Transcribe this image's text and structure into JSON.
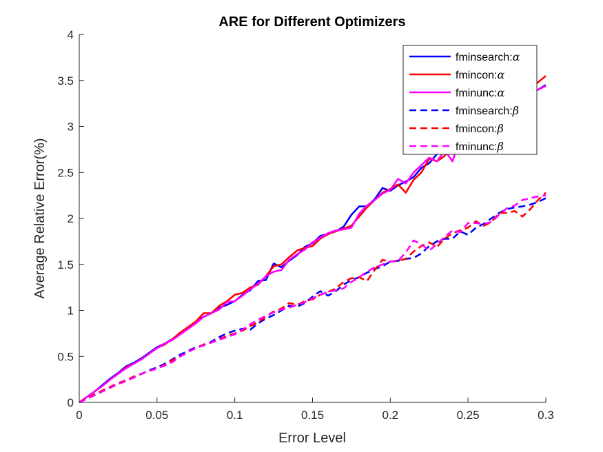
{
  "chart_data": {
    "type": "line",
    "title": "ARE for Different Optimizers",
    "xlabel": "Error Level",
    "ylabel": "Average Relative Error(%)",
    "xlim": [
      0,
      0.3
    ],
    "ylim": [
      0,
      4
    ],
    "xticks": [
      "0",
      "0.05",
      "0.1",
      "0.15",
      "0.2",
      "0.25",
      "0.3"
    ],
    "yticks": [
      "0",
      "0.5",
      "1",
      "1.5",
      "2",
      "2.5",
      "3",
      "3.5",
      "4"
    ],
    "grid": false,
    "legend_position": "top-right",
    "x": [
      0,
      0.005,
      0.01,
      0.015,
      0.02,
      0.025,
      0.03,
      0.035,
      0.04,
      0.045,
      0.05,
      0.055,
      0.06,
      0.065,
      0.07,
      0.075,
      0.08,
      0.085,
      0.09,
      0.095,
      0.1,
      0.105,
      0.11,
      0.115,
      0.12,
      0.125,
      0.13,
      0.135,
      0.14,
      0.145,
      0.15,
      0.155,
      0.16,
      0.165,
      0.17,
      0.175,
      0.18,
      0.185,
      0.19,
      0.195,
      0.2,
      0.205,
      0.21,
      0.215,
      0.22,
      0.225,
      0.23,
      0.235,
      0.24,
      0.245,
      0.25,
      0.255,
      0.26,
      0.265,
      0.27,
      0.275,
      0.28,
      0.285,
      0.29,
      0.295,
      0.3
    ],
    "series": [
      {
        "name": "fminsearch:",
        "greek": "α",
        "color": "#0000ff",
        "dash": "solid",
        "values": [
          0,
          0.06,
          0.12,
          0.19,
          0.26,
          0.32,
          0.39,
          0.43,
          0.48,
          0.54,
          0.6,
          0.64,
          0.69,
          0.75,
          0.8,
          0.88,
          0.93,
          0.97,
          1.03,
          1.06,
          1.1,
          1.17,
          1.22,
          1.32,
          1.33,
          1.51,
          1.47,
          1.54,
          1.6,
          1.69,
          1.73,
          1.81,
          1.83,
          1.86,
          1.91,
          2.04,
          2.13,
          2.13,
          2.21,
          2.33,
          2.3,
          2.36,
          2.4,
          2.45,
          2.55,
          2.6,
          2.7,
          2.82,
          2.9,
          2.95,
          3.03,
          3.1,
          3.16,
          3.2,
          3.24,
          3.27,
          3.3,
          3.32,
          3.35,
          3.4,
          3.45
        ]
      },
      {
        "name": "fmincon:",
        "greek": "α",
        "color": "#ff0000",
        "dash": "solid",
        "values": [
          0,
          0.06,
          0.12,
          0.18,
          0.25,
          0.31,
          0.38,
          0.42,
          0.47,
          0.53,
          0.59,
          0.63,
          0.69,
          0.76,
          0.82,
          0.88,
          0.97,
          0.97,
          1.05,
          1.1,
          1.17,
          1.19,
          1.25,
          1.28,
          1.37,
          1.48,
          1.5,
          1.58,
          1.65,
          1.68,
          1.7,
          1.78,
          1.83,
          1.86,
          1.89,
          1.92,
          2.02,
          2.12,
          2.2,
          2.28,
          2.32,
          2.37,
          2.28,
          2.42,
          2.5,
          2.65,
          2.62,
          2.68,
          2.82,
          2.93,
          3.01,
          3.1,
          3.2,
          3.21,
          3.28,
          3.3,
          3.32,
          3.36,
          3.4,
          3.48,
          3.55
        ]
      },
      {
        "name": "fminunc:",
        "greek": "α",
        "color": "#ff00ff",
        "dash": "solid",
        "values": [
          0,
          0.06,
          0.12,
          0.18,
          0.25,
          0.31,
          0.37,
          0.42,
          0.47,
          0.53,
          0.59,
          0.64,
          0.68,
          0.74,
          0.8,
          0.86,
          0.93,
          0.97,
          1.01,
          1.09,
          1.1,
          1.16,
          1.23,
          1.29,
          1.37,
          1.42,
          1.44,
          1.55,
          1.61,
          1.66,
          1.74,
          1.79,
          1.84,
          1.87,
          1.88,
          1.9,
          2.05,
          2.14,
          2.2,
          2.27,
          2.31,
          2.43,
          2.38,
          2.5,
          2.58,
          2.66,
          2.62,
          2.74,
          2.62,
          2.88,
          2.99,
          3.06,
          3.14,
          3.21,
          3.25,
          3.28,
          3.31,
          3.34,
          3.37,
          3.4,
          3.44
        ]
      },
      {
        "name": "fminsearch:",
        "greek": "β",
        "color": "#0000ff",
        "dash": "dashed",
        "values": [
          0,
          0.04,
          0.08,
          0.12,
          0.16,
          0.2,
          0.24,
          0.27,
          0.31,
          0.35,
          0.38,
          0.42,
          0.47,
          0.52,
          0.56,
          0.6,
          0.62,
          0.66,
          0.71,
          0.75,
          0.78,
          0.8,
          0.79,
          0.86,
          0.91,
          0.95,
          1.0,
          1.05,
          1.04,
          1.08,
          1.15,
          1.21,
          1.16,
          1.21,
          1.28,
          1.33,
          1.36,
          1.41,
          1.45,
          1.48,
          1.53,
          1.54,
          1.56,
          1.57,
          1.62,
          1.7,
          1.75,
          1.78,
          1.78,
          1.86,
          1.82,
          1.9,
          1.94,
          2.0,
          2.06,
          2.1,
          2.12,
          2.13,
          2.15,
          2.18,
          2.22
        ]
      },
      {
        "name": "fmincon:",
        "greek": "β",
        "color": "#ff0000",
        "dash": "dashed",
        "values": [
          0,
          0.05,
          0.09,
          0.13,
          0.17,
          0.21,
          0.24,
          0.28,
          0.31,
          0.34,
          0.37,
          0.41,
          0.46,
          0.5,
          0.55,
          0.59,
          0.63,
          0.65,
          0.69,
          0.72,
          0.75,
          0.78,
          0.83,
          0.87,
          0.93,
          0.99,
          1.02,
          1.08,
          1.06,
          1.1,
          1.12,
          1.17,
          1.2,
          1.24,
          1.31,
          1.35,
          1.36,
          1.32,
          1.44,
          1.55,
          1.53,
          1.54,
          1.56,
          1.64,
          1.7,
          1.74,
          1.69,
          1.78,
          1.84,
          1.87,
          1.9,
          1.97,
          1.92,
          1.96,
          2.06,
          2.06,
          2.08,
          2.02,
          2.1,
          2.2,
          2.28
        ]
      },
      {
        "name": "fminunc:",
        "greek": "β",
        "color": "#ff00ff",
        "dash": "dashed",
        "values": [
          0,
          0.04,
          0.08,
          0.12,
          0.16,
          0.2,
          0.23,
          0.27,
          0.31,
          0.34,
          0.37,
          0.4,
          0.44,
          0.5,
          0.55,
          0.59,
          0.62,
          0.65,
          0.68,
          0.71,
          0.74,
          0.79,
          0.85,
          0.9,
          0.94,
          0.98,
          1.01,
          1.03,
          1.06,
          1.09,
          1.13,
          1.17,
          1.2,
          1.22,
          1.24,
          1.31,
          1.36,
          1.42,
          1.47,
          1.5,
          1.53,
          1.54,
          1.63,
          1.76,
          1.72,
          1.65,
          1.72,
          1.8,
          1.87,
          1.85,
          1.95,
          1.95,
          1.94,
          1.96,
          2.04,
          2.11,
          2.14,
          2.2,
          2.22,
          2.24,
          2.25
        ]
      }
    ]
  }
}
